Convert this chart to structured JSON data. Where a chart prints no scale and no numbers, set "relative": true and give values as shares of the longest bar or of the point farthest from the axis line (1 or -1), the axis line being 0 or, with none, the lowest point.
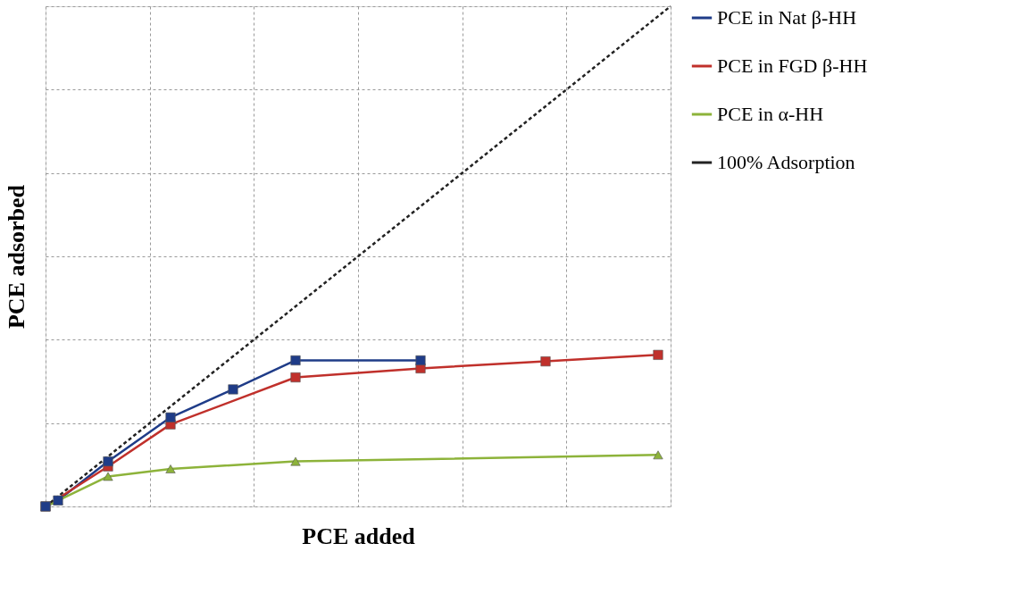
{
  "chart_data": {
    "type": "line",
    "relative": true,
    "xlabel": "PCE added",
    "ylabel": "PCE adsorbed",
    "categories": [
      null,
      null,
      null,
      null,
      null,
      null,
      null,
      null,
      null,
      null,
      null,
      null,
      null,
      null,
      null,
      null,
      null,
      null,
      null,
      null,
      null,
      null,
      null,
      null,
      null,
      null,
      null,
      null,
      null,
      null,
      null,
      null,
      null,
      null,
      null,
      null,
      null,
      null,
      null,
      null,
      null,
      null,
      null,
      null,
      null,
      null,
      null,
      null,
      null,
      null,
      null
    ],
    "grid": true,
    "legend": "right",
    "series": [
      {
        "name": "PCE in Nat β-HH",
        "color": "#1f3c88",
        "marker": "square",
        "values": [
          0,
          0.012,
          null,
          null,
          null,
          0.09,
          null,
          null,
          null,
          null,
          0.178,
          null,
          null,
          null,
          null,
          0.234,
          null,
          null,
          null,
          null,
          0.292,
          null,
          null,
          null,
          null,
          null,
          null,
          null,
          null,
          null,
          0.292,
          null,
          null,
          null,
          null,
          null,
          null,
          null,
          null,
          null,
          null,
          null,
          null,
          null,
          null,
          null,
          null,
          null,
          null,
          null,
          null
        ]
      },
      {
        "name": "PCE in FGD β-HH",
        "color": "#c0302b",
        "marker": "square",
        "values": [
          0,
          null,
          null,
          null,
          null,
          0.08,
          null,
          null,
          null,
          null,
          0.164,
          null,
          null,
          null,
          null,
          null,
          null,
          null,
          null,
          null,
          0.258,
          null,
          null,
          null,
          null,
          null,
          null,
          null,
          null,
          null,
          0.276,
          null,
          null,
          null,
          null,
          null,
          null,
          null,
          null,
          null,
          0.29,
          null,
          null,
          null,
          null,
          null,
          null,
          null,
          null,
          0.303,
          null
        ]
      },
      {
        "name": "PCE in α-HH",
        "color": "#8db33a",
        "marker": "triangle",
        "values": [
          0,
          0.012,
          null,
          null,
          null,
          0.06,
          null,
          null,
          null,
          null,
          0.075,
          null,
          null,
          null,
          null,
          null,
          null,
          null,
          null,
          null,
          0.09,
          null,
          null,
          null,
          null,
          null,
          null,
          null,
          null,
          null,
          null,
          null,
          null,
          null,
          null,
          null,
          null,
          null,
          null,
          null,
          null,
          null,
          null,
          null,
          null,
          null,
          null,
          null,
          null,
          0.103,
          null
        ]
      },
      {
        "name": "100% Adsorption",
        "color": "#222222",
        "marker": "none",
        "line_style": "dashed",
        "values": [
          0,
          0.02,
          0.04,
          0.06,
          0.08,
          0.1,
          0.12,
          0.14,
          0.16,
          0.18,
          0.2,
          0.22,
          0.24,
          0.26,
          0.28,
          0.3,
          0.32,
          0.34,
          0.36,
          0.38,
          0.4,
          0.42,
          0.44,
          0.46,
          0.48,
          0.5,
          0.52,
          0.54,
          0.56,
          0.58,
          0.6,
          0.62,
          0.64,
          0.66,
          0.68,
          0.7,
          0.72,
          0.74,
          0.76,
          0.78,
          0.8,
          0.82,
          0.84,
          0.86,
          0.88,
          0.9,
          0.92,
          0.94,
          0.96,
          0.98,
          1
        ]
      }
    ]
  }
}
